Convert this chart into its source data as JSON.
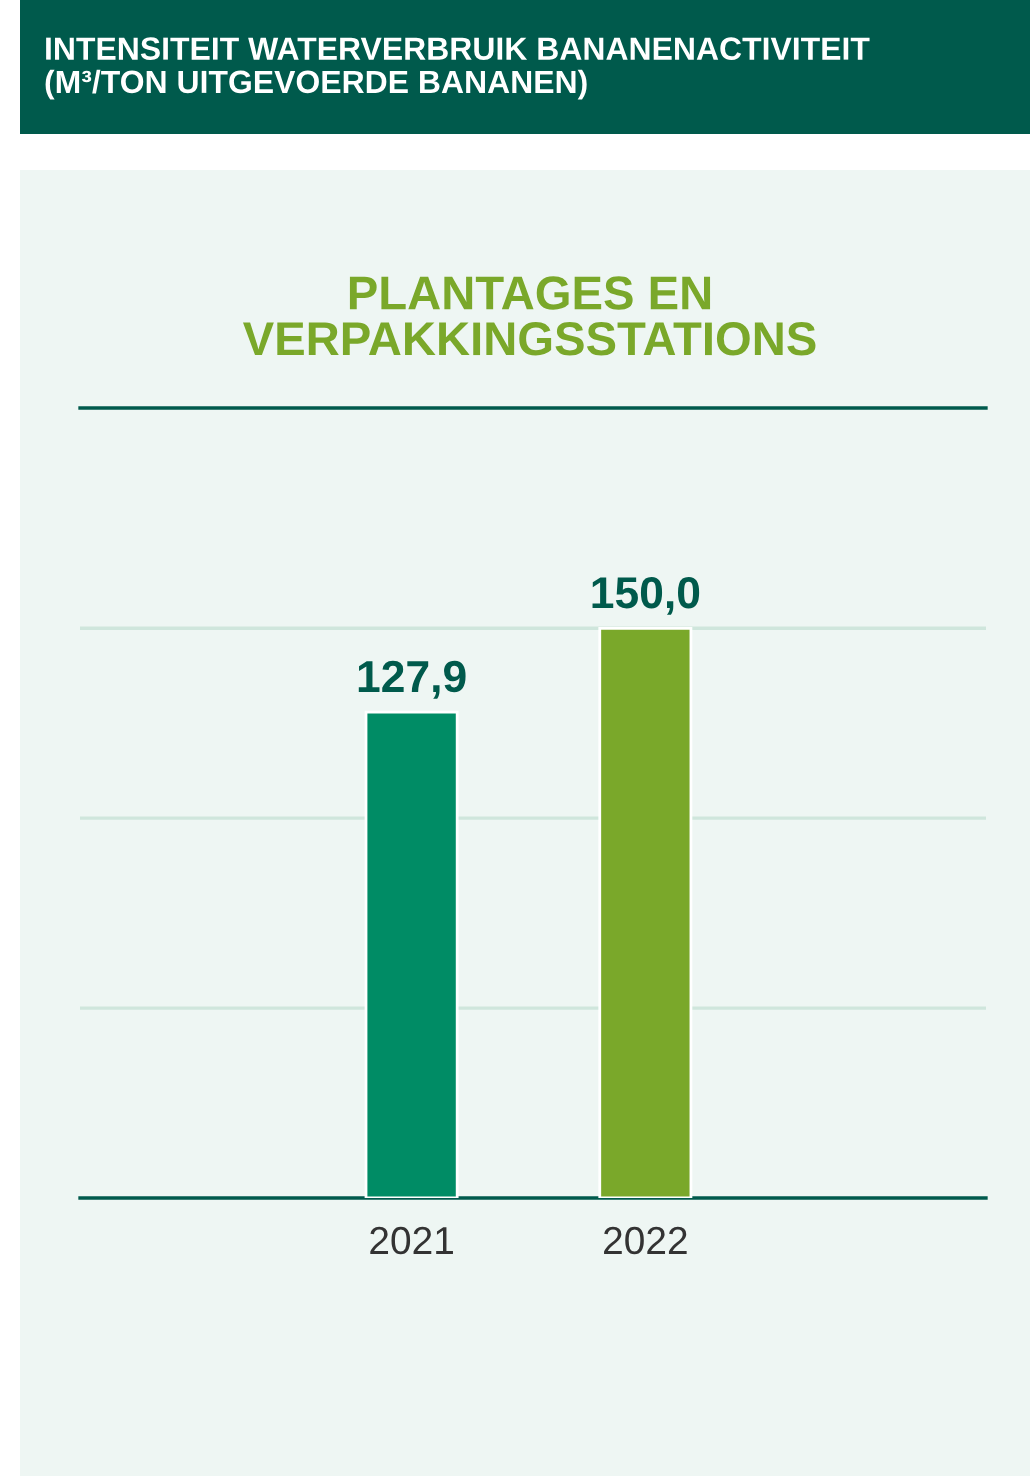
{
  "chart_data": {
    "type": "bar",
    "title": "INTENSITEIT WATERVERBRUIK BANANENACTIVITEIT\n(M³/TON UITGEVOERDE BANANEN)",
    "subtitle": "PLANTAGES EN\nVERPAKKINGSSTATIONS",
    "categories": [
      "2021",
      "2022"
    ],
    "values": [
      127.9,
      150.0
    ],
    "colors": [
      "#008c65",
      "#7aa82a"
    ],
    "value_labels": [
      "127,9",
      "150,0"
    ],
    "ylim": [
      0,
      208
    ],
    "yticks": [
      {
        "value": 50,
        "label": null
      },
      {
        "value": 100,
        "label": null
      },
      {
        "value": 150,
        "label": null
      }
    ],
    "grid": "y",
    "legend": false
  }
}
